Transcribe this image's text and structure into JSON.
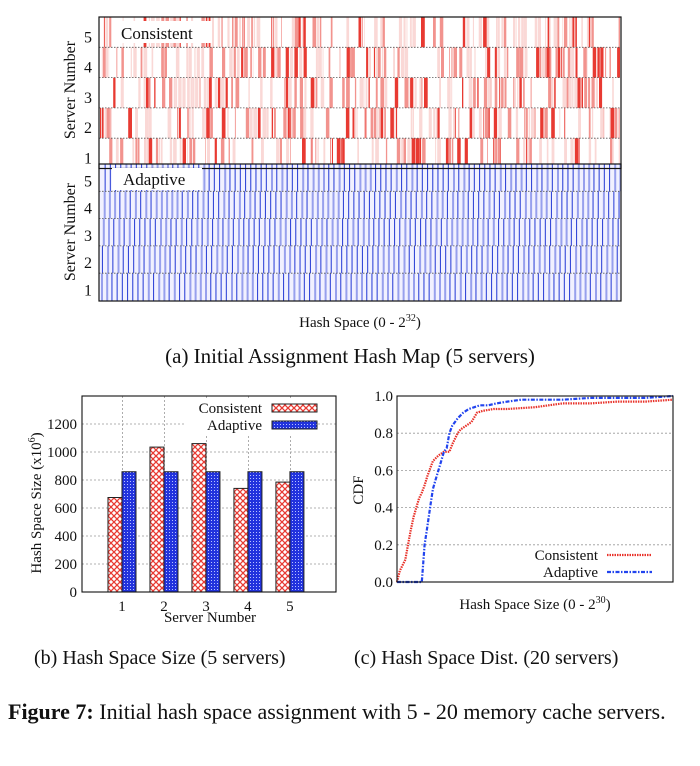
{
  "chart_data": [
    {
      "id": "a",
      "type": "heatmap",
      "title": "",
      "panels": [
        {
          "name": "Consistent",
          "color": "#e83a32",
          "pattern": "irregular"
        },
        {
          "name": "Adaptive",
          "color": "#2a3fd6",
          "pattern": "regular"
        }
      ],
      "xlabel": "Hash Space (0 - 2",
      "xlabel_sup": "32",
      "xlabel_end": ")",
      "ylabel": "Server Number",
      "yticks": [
        "1",
        "2",
        "3",
        "4",
        "5"
      ],
      "caption": "(a)  Initial Assignment Hash Map (5 servers)"
    },
    {
      "id": "b",
      "type": "bar",
      "categories": [
        "1",
        "2",
        "3",
        "4",
        "5"
      ],
      "series": [
        {
          "name": "Consistent",
          "values": [
            675,
            1035,
            1060,
            740,
            785
          ],
          "color": "#e83a32",
          "pattern": "crosshatch"
        },
        {
          "name": "Adaptive",
          "values": [
            859,
            859,
            859,
            859,
            859
          ],
          "color": "#2233dd",
          "pattern": "dots"
        }
      ],
      "xlabel": "Server Number",
      "ylabel": "Hash Space Size (x10",
      "ylabel_sup": "6",
      "ylabel_end": ")",
      "ylim": [
        0,
        1400
      ],
      "yticks": [
        0,
        200,
        400,
        600,
        800,
        1000,
        1200
      ],
      "grid": true,
      "legend": "top-right",
      "caption": "(b)  Hash Space Size (5 servers)"
    },
    {
      "id": "c",
      "type": "line",
      "xlabel": "Hash Space Size (0 - 2",
      "xlabel_sup": "30",
      "xlabel_end": ")",
      "ylabel": "CDF",
      "ylim": [
        0,
        1
      ],
      "xlim": [
        0,
        1
      ],
      "yticks": [
        "0.0",
        "0.2",
        "0.4",
        "0.6",
        "0.8",
        "1.0"
      ],
      "grid": true,
      "legend": "bottom-right",
      "series": [
        {
          "name": "Consistent",
          "color": "#e8322a",
          "dash": "dotted",
          "x": [
            0,
            0.01,
            0.03,
            0.04,
            0.05,
            0.06,
            0.07,
            0.08,
            0.09,
            0.1,
            0.11,
            0.12,
            0.13,
            0.15,
            0.17,
            0.19,
            0.2,
            0.22,
            0.23,
            0.25,
            0.27,
            0.29,
            0.31,
            0.35,
            0.4,
            0.5,
            0.6,
            0.7,
            0.8,
            0.9,
            1.0
          ],
          "y": [
            0,
            0.06,
            0.12,
            0.2,
            0.28,
            0.35,
            0.4,
            0.45,
            0.48,
            0.52,
            0.57,
            0.61,
            0.65,
            0.68,
            0.7,
            0.7,
            0.74,
            0.8,
            0.82,
            0.84,
            0.86,
            0.91,
            0.92,
            0.93,
            0.93,
            0.94,
            0.96,
            0.96,
            0.97,
            0.97,
            0.98
          ]
        },
        {
          "name": "Adaptive",
          "color": "#2244ee",
          "dash": "dashdot",
          "x": [
            0,
            0.09,
            0.095,
            0.1,
            0.11,
            0.12,
            0.13,
            0.14,
            0.15,
            0.16,
            0.17,
            0.18,
            0.19,
            0.2,
            0.21,
            0.22,
            0.24,
            0.26,
            0.28,
            0.3,
            0.33,
            0.36,
            0.4,
            0.45,
            0.5,
            0.6,
            0.7,
            0.8,
            0.9,
            1.0
          ],
          "y": [
            0,
            0,
            0.1,
            0.2,
            0.3,
            0.4,
            0.5,
            0.55,
            0.6,
            0.65,
            0.7,
            0.72,
            0.8,
            0.84,
            0.86,
            0.88,
            0.91,
            0.93,
            0.94,
            0.95,
            0.95,
            0.96,
            0.97,
            0.98,
            0.98,
            0.98,
            0.99,
            0.99,
            0.99,
            1.0
          ]
        }
      ],
      "caption": "(c)  Hash Space Dist. (20 servers)"
    }
  ],
  "figure_caption": {
    "label": "Figure 7:",
    "text": " Initial hash space assignment with 5 - 20 memory cache servers."
  }
}
